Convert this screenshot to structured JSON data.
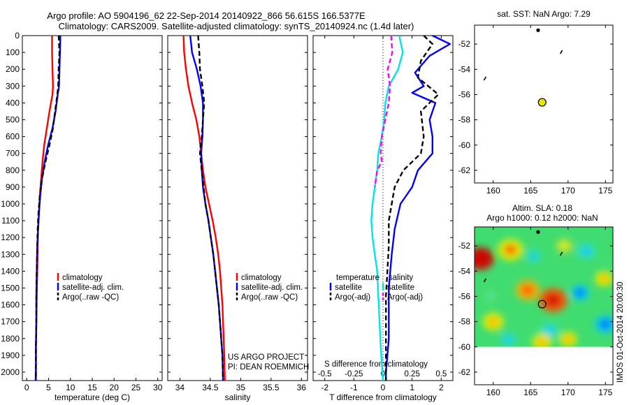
{
  "figure": {
    "title_line1": "Argo profile: AO 5904196_62 22-Sep-2014 20140922_866 56.615S 166.5377E",
    "title_line2": "Climatology: CARS2009. Satellite-adjusted climatology: synTS_20140924.nc (1.4d later)",
    "side_label": "IMOS 01-Oct-2014 20:00:30"
  },
  "chart_data": [
    {
      "id": "temperature",
      "type": "line",
      "xlabel": "temperature (deg C)",
      "ylabel": "",
      "xlim": [
        -1,
        31
      ],
      "ylim": [
        2050,
        0
      ],
      "xticks": [
        0,
        5,
        10,
        15,
        20,
        25,
        30
      ],
      "xtick_labels": [
        "0",
        "5",
        "10",
        "15",
        "20",
        "25",
        "30"
      ],
      "yticks": [
        0,
        100,
        200,
        300,
        400,
        500,
        600,
        700,
        800,
        900,
        1000,
        1100,
        1200,
        1300,
        1400,
        1500,
        1600,
        1700,
        1800,
        1900,
        2000
      ],
      "ytick_labels": [
        "0",
        "100",
        "200",
        "300",
        "400",
        "500",
        "600",
        "700",
        "800",
        "900",
        "1000",
        "1100",
        "1200",
        "1300",
        "1400",
        "1500",
        "1600",
        "1700",
        "1800",
        "1900",
        "2000"
      ],
      "legend": [
        "climatology",
        "satellite-adj. clim.",
        "Argo(..raw -QC)"
      ],
      "legend_position": "lower-middle",
      "series": [
        {
          "name": "climatology",
          "color": "#ff0000",
          "dash": "solid",
          "x": [
            5.8,
            5.8,
            5.9,
            6.0,
            5.9,
            5.2,
            4.6,
            4.0,
            3.6,
            3.3,
            3.0,
            2.8,
            2.6,
            2.5,
            2.4,
            2.3,
            2.2,
            2.1,
            2.1,
            2.0,
            2.0
          ],
          "y": [
            0,
            100,
            200,
            300,
            350,
            450,
            550,
            650,
            750,
            850,
            950,
            1050,
            1150,
            1250,
            1400,
            1550,
            1700,
            1850,
            1950,
            2050,
            2050
          ]
        },
        {
          "name": "satellite-adj. clim.",
          "color": "#0000ff",
          "dash": "solid",
          "x": [
            7.7,
            7.6,
            7.5,
            7.4,
            7.1,
            6.6,
            5.9,
            4.9,
            4.1,
            3.5,
            3.1,
            2.8,
            2.6,
            2.4,
            2.3,
            2.2,
            2.2,
            2.1,
            2.1,
            2.1
          ],
          "y": [
            0,
            100,
            200,
            300,
            350,
            450,
            550,
            650,
            750,
            850,
            950,
            1050,
            1150,
            1250,
            1400,
            1550,
            1700,
            1850,
            1950,
            2050
          ]
        },
        {
          "name": "Argo(..raw -QC)",
          "color": "#000000",
          "dash": "dashed",
          "x": [
            7.3,
            7.5,
            7.3,
            7.2,
            7.0,
            6.5,
            6.0,
            5.2,
            4.3,
            3.5,
            3.0,
            2.7,
            2.5,
            2.4,
            2.3,
            2.2,
            2.2,
            2.1,
            2.1,
            2.1
          ],
          "y": [
            0,
            100,
            200,
            300,
            350,
            450,
            550,
            650,
            750,
            850,
            950,
            1050,
            1150,
            1250,
            1400,
            1550,
            1700,
            1850,
            1950,
            2050
          ]
        }
      ]
    },
    {
      "id": "salinity",
      "type": "line",
      "xlabel": "salinity",
      "xlim": [
        33.8,
        36.1
      ],
      "ylim": [
        2050,
        0
      ],
      "xticks": [
        34,
        34.5,
        35,
        35.5,
        36
      ],
      "xtick_labels": [
        "34",
        "34.5",
        "35",
        "35.5",
        "36"
      ],
      "legend": [
        "climatology",
        "satellite-adj. clim.",
        "Argo(..raw -QC)"
      ],
      "legend_position": "lower-right",
      "annotation_line1": "US ARGO PROJECT",
      "annotation_line2": "PI: DEAN ROEMMICH",
      "series": [
        {
          "name": "climatology",
          "color": "#ff0000",
          "dash": "solid",
          "x": [
            34.06,
            34.07,
            34.1,
            34.14,
            34.2,
            34.27,
            34.32,
            34.35,
            34.38,
            34.42,
            34.48,
            34.54,
            34.59,
            34.63,
            34.66,
            34.68,
            34.7,
            34.71,
            34.72,
            34.73,
            34.74
          ],
          "y": [
            0,
            100,
            200,
            300,
            400,
            500,
            600,
            700,
            800,
            900,
            1000,
            1100,
            1200,
            1300,
            1400,
            1500,
            1600,
            1700,
            1800,
            1900,
            2050
          ]
        },
        {
          "name": "satellite-adj. clim.",
          "color": "#0000ff",
          "dash": "solid",
          "x": [
            34.17,
            34.2,
            34.28,
            34.34,
            34.38,
            34.38,
            34.37,
            34.35,
            34.36,
            34.38,
            34.42,
            34.47,
            34.51,
            34.55,
            34.58,
            34.61,
            34.64,
            34.66,
            34.68,
            34.7,
            34.71
          ],
          "y": [
            0,
            100,
            200,
            300,
            400,
            500,
            600,
            700,
            800,
            900,
            1000,
            1100,
            1200,
            1300,
            1400,
            1500,
            1600,
            1700,
            1800,
            1900,
            2050
          ]
        },
        {
          "name": "Argo(..raw -QC)",
          "color": "#000000",
          "dash": "dashed",
          "x": [
            34.3,
            34.32,
            34.33,
            34.37,
            34.4,
            34.38,
            34.36,
            34.33,
            34.36,
            34.39,
            34.42,
            34.47,
            34.51,
            34.55,
            34.58,
            34.61,
            34.64,
            34.66,
            34.68,
            34.7,
            34.71
          ],
          "y": [
            0,
            100,
            200,
            300,
            400,
            500,
            600,
            700,
            800,
            900,
            1000,
            1100,
            1200,
            1300,
            1400,
            1500,
            1600,
            1700,
            1800,
            1900,
            2050
          ]
        }
      ]
    },
    {
      "id": "difference",
      "type": "line",
      "xlabel": "T difference from climatology",
      "xlabel_top": "S difference from climatology",
      "xlim": [
        -2.4,
        2.4
      ],
      "ylim": [
        2050,
        0
      ],
      "xticks": [
        -2,
        -1,
        0,
        1,
        2
      ],
      "xtick_labels": [
        "-2",
        "-1",
        "0",
        "1",
        "2"
      ],
      "xticks_s": [
        -0.5,
        -0.25,
        0,
        0.25,
        0.5
      ],
      "xtick_labels_s": [
        "-0.5",
        "-0.25",
        "0",
        "0.25",
        "0.5"
      ],
      "s_scale": 4,
      "legend_groups": [
        {
          "title": "temperature",
          "items": [
            "satellite",
            "Argo(-adj)"
          ]
        },
        {
          "title": "salinity",
          "items": [
            "satellite",
            "Argo(-adj)"
          ]
        }
      ],
      "series": [
        {
          "name": "temperature satellite",
          "color": "#0000ff",
          "dash": "solid",
          "x": [
            1.7,
            2.3,
            1.6,
            1.1,
            1.4,
            1.0,
            1.8,
            1.6,
            1.7,
            1.7,
            1.2,
            1.0,
            0.6,
            0.4,
            0.3,
            0.2,
            0.2,
            0.2,
            0.15,
            0.1,
            0.1
          ],
          "y": [
            0,
            50,
            120,
            220,
            300,
            340,
            400,
            500,
            600,
            700,
            800,
            900,
            1000,
            1150,
            1300,
            1500,
            1650,
            1800,
            1900,
            2000,
            2050
          ]
        },
        {
          "name": "temperature Argo(-adj)",
          "color": "#000000",
          "dash": "dashed",
          "x": [
            1.4,
            1.7,
            1.3,
            1.2,
            1.9,
            1.3,
            1.4,
            1.3,
            0.7,
            0.4,
            0.3,
            0.2,
            0.2,
            0.15,
            0.1,
            0.1,
            0.1,
            0.1,
            0.1,
            0.1
          ],
          "y": [
            0,
            50,
            150,
            250,
            350,
            450,
            600,
            700,
            800,
            900,
            1000,
            1100,
            1250,
            1400,
            1550,
            1700,
            1800,
            1900,
            2000,
            2050
          ]
        },
        {
          "name": "salinity satellite",
          "color": "#00e5e5",
          "dash": "solid",
          "x": [
            0.14,
            0.17,
            0.13,
            0.05,
            0.02,
            0.01,
            -0.01,
            -0.04,
            -0.05,
            -0.07,
            -0.09,
            -0.1,
            -0.09,
            -0.07,
            -0.05,
            -0.04,
            -0.03,
            -0.02,
            -0.01,
            0.0
          ],
          "y": [
            0,
            100,
            200,
            300,
            400,
            500,
            600,
            700,
            800,
            900,
            1000,
            1100,
            1200,
            1300,
            1400,
            1550,
            1700,
            1850,
            1950,
            2050
          ]
        },
        {
          "name": "salinity Argo(-adj)",
          "color": "#ff00ff",
          "dash": "dashed",
          "x": [
            0.07,
            0.08,
            0.04,
            0.06,
            0.05,
            0.02,
            -0.01,
            -0.02,
            -0.01,
            -0.05,
            -0.07
          ],
          "y": [
            0,
            100,
            200,
            300,
            400,
            500,
            600,
            700,
            750,
            800,
            900
          ]
        }
      ]
    },
    {
      "id": "map-sst",
      "type": "scatter",
      "title": "sat. SST: NaN Argo: 7.29",
      "xlim": [
        157.5,
        176
      ],
      "ylim": [
        -63,
        -50.5
      ],
      "xticks": [
        160,
        165,
        170,
        175
      ],
      "xtick_labels": [
        "160",
        "165",
        "170",
        "175"
      ],
      "yticks": [
        -62,
        -60,
        -58,
        -56,
        -54,
        -52
      ],
      "ytick_labels": [
        "-62",
        "-60",
        "-58",
        "-56",
        "-54",
        "-52"
      ],
      "grid": false,
      "points": [
        {
          "x": 166.0,
          "y": -50.9,
          "kind": "dot"
        },
        {
          "x": 169.1,
          "y": -52.6,
          "kind": "fleck"
        },
        {
          "x": 158.9,
          "y": -54.7,
          "kind": "fleck"
        },
        {
          "x": 166.5377,
          "y": -56.615,
          "kind": "profile",
          "color": "#e6e600"
        }
      ]
    },
    {
      "id": "map-sla",
      "type": "heatmap",
      "title_line1": "Altim. SLA: 0.18",
      "title_line2": "Argo h1000: 0.12 h2000: NaN",
      "xlim": [
        157.5,
        176
      ],
      "ylim": [
        -63,
        -50.5
      ],
      "xticks": [
        160,
        165,
        170,
        175
      ],
      "xtick_labels": [
        "160",
        "165",
        "170",
        "175"
      ],
      "yticks": [
        -62,
        -60,
        -58,
        -56,
        -54,
        -52
      ],
      "ytick_labels": [
        "-62",
        "-60",
        "-58",
        "-56",
        "-54",
        "-52"
      ],
      "data_extent": {
        "lon": [
          157.5,
          176
        ],
        "lat": [
          -60,
          -50.5
        ]
      },
      "colormap": [
        "#0000a0",
        "#0060ff",
        "#00c8ff",
        "#30e0c0",
        "#60e060",
        "#a0e040",
        "#f0f000",
        "#ffb000",
        "#ff5000",
        "#d00000"
      ],
      "background_color": "#40dc70",
      "anomalies": [
        {
          "lon": 158.3,
          "lat": -53.0,
          "level": 0.95,
          "r": 1.8
        },
        {
          "lon": 162.3,
          "lat": -52.3,
          "level": 0.72,
          "r": 1.7
        },
        {
          "lon": 160.0,
          "lat": -58.0,
          "level": 0.7,
          "r": 1.4
        },
        {
          "lon": 164.6,
          "lat": -55.5,
          "level": 0.75,
          "r": 1.6
        },
        {
          "lon": 168.0,
          "lat": -56.3,
          "level": 0.85,
          "r": 1.9
        },
        {
          "lon": 171.6,
          "lat": -55.7,
          "level": 0.2,
          "r": 1.2
        },
        {
          "lon": 172.4,
          "lat": -52.4,
          "level": 0.38,
          "r": 1.3
        },
        {
          "lon": 175.0,
          "lat": -58.2,
          "level": 0.25,
          "r": 1.4
        },
        {
          "lon": 167.5,
          "lat": -58.7,
          "level": 0.32,
          "r": 1.2
        },
        {
          "lon": 166.5,
          "lat": -59.6,
          "level": 0.68,
          "r": 1.3
        },
        {
          "lon": 162.0,
          "lat": -59.4,
          "level": 0.3,
          "r": 1.1
        },
        {
          "lon": 169.5,
          "lat": -52.0,
          "level": 0.6,
          "r": 1.2
        },
        {
          "lon": 174.8,
          "lat": -54.6,
          "level": 0.62,
          "r": 1.2
        },
        {
          "lon": 165.4,
          "lat": -52.8,
          "level": 0.35,
          "r": 1.0
        },
        {
          "lon": 159.6,
          "lat": -56.0,
          "level": 0.4,
          "r": 1.0
        },
        {
          "lon": 170.0,
          "lat": -59.4,
          "level": 0.7,
          "r": 1.2
        }
      ],
      "points": [
        {
          "x": 166.0,
          "y": -50.9,
          "kind": "dot"
        },
        {
          "x": 169.1,
          "y": -52.6,
          "kind": "fleck"
        },
        {
          "x": 158.9,
          "y": -54.7,
          "kind": "fleck"
        },
        {
          "x": 166.5377,
          "y": -56.615,
          "kind": "profile",
          "color": "none"
        }
      ]
    }
  ]
}
